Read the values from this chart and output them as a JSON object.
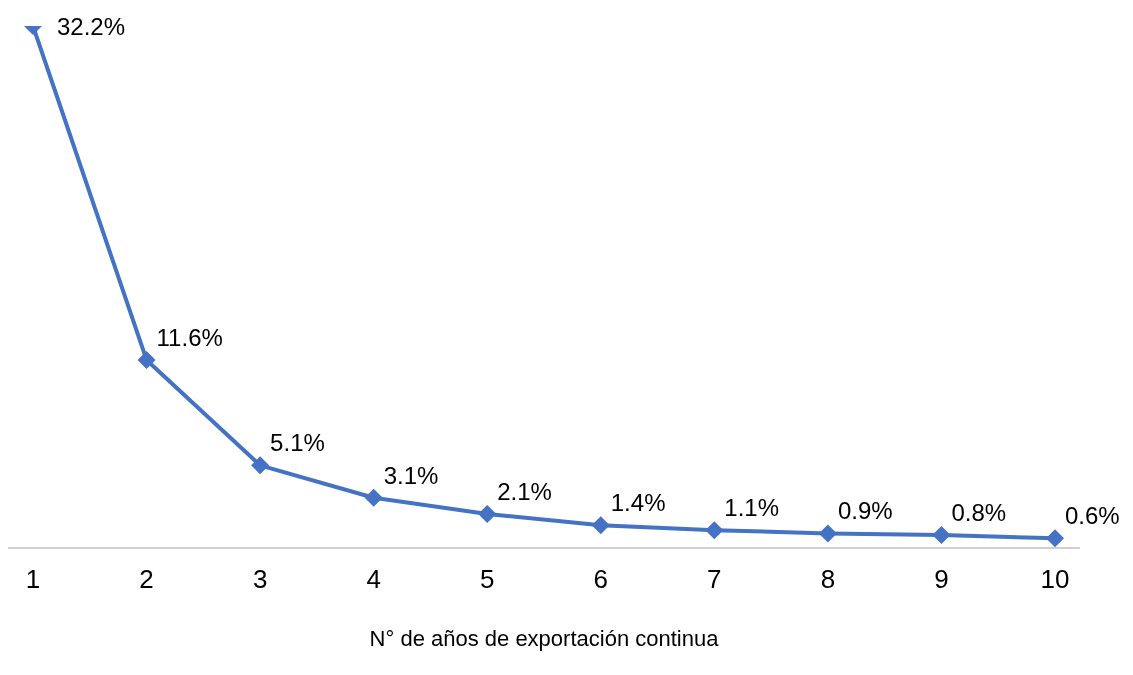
{
  "chart_data": {
    "type": "line",
    "xlabel": "N° de años de exportación continua",
    "categories": [
      "1",
      "2",
      "3",
      "4",
      "5",
      "6",
      "7",
      "8",
      "9",
      "10"
    ],
    "series": [
      {
        "color": "#4472c4",
        "values": [
          32.2,
          11.6,
          5.1,
          3.1,
          2.1,
          1.4,
          1.1,
          0.9,
          0.8,
          0.6
        ],
        "value_labels": [
          "32.2%",
          "11.6%",
          "5.1%",
          "3.1%",
          "2.1%",
          "1.4%",
          "1.1%",
          "0.9%",
          "0.8%",
          "0.6%"
        ]
      }
    ],
    "marker": "diamond",
    "line_style": "solid",
    "grid": false,
    "legend": false,
    "tick_labels": "x"
  }
}
